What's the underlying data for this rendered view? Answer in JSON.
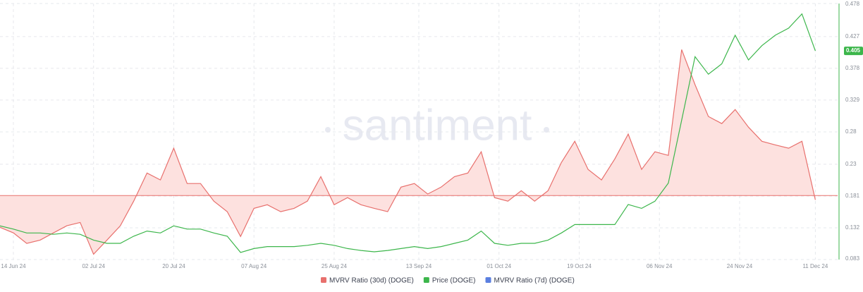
{
  "chart_data": {
    "type": "line",
    "watermark": "santiment",
    "x": [
      "2024-06-11",
      "2024-06-14",
      "2024-06-17",
      "2024-06-20",
      "2024-06-23",
      "2024-06-26",
      "2024-06-29",
      "2024-07-02",
      "2024-07-05",
      "2024-07-08",
      "2024-07-11",
      "2024-07-14",
      "2024-07-17",
      "2024-07-20",
      "2024-07-23",
      "2024-07-26",
      "2024-07-29",
      "2024-08-01",
      "2024-08-04",
      "2024-08-07",
      "2024-08-10",
      "2024-08-13",
      "2024-08-16",
      "2024-08-19",
      "2024-08-22",
      "2024-08-25",
      "2024-08-28",
      "2024-08-31",
      "2024-09-03",
      "2024-09-06",
      "2024-09-09",
      "2024-09-12",
      "2024-09-15",
      "2024-09-18",
      "2024-09-21",
      "2024-09-24",
      "2024-09-27",
      "2024-09-30",
      "2024-10-03",
      "2024-10-06",
      "2024-10-09",
      "2024-10-12",
      "2024-10-15",
      "2024-10-18",
      "2024-10-21",
      "2024-10-24",
      "2024-10-27",
      "2024-10-30",
      "2024-11-02",
      "2024-11-05",
      "2024-11-08",
      "2024-11-11",
      "2024-11-14",
      "2024-11-17",
      "2024-11-20",
      "2024-11-23",
      "2024-11-26",
      "2024-11-29",
      "2024-12-02",
      "2024-12-05",
      "2024-12-08",
      "2024-12-11"
    ],
    "xlim": [
      "2024-06-11",
      "2024-12-16"
    ],
    "xticks": [
      {
        "value": "2024-06-14",
        "label": "14 Jun 24"
      },
      {
        "value": "2024-07-02",
        "label": "02 Jul 24"
      },
      {
        "value": "2024-07-20",
        "label": "20 Jul 24"
      },
      {
        "value": "2024-08-07",
        "label": "07 Aug 24"
      },
      {
        "value": "2024-08-25",
        "label": "25 Aug 24"
      },
      {
        "value": "2024-09-13",
        "label": "13 Sep 24"
      },
      {
        "value": "2024-10-01",
        "label": "01 Oct 24"
      },
      {
        "value": "2024-10-19",
        "label": "19 Oct 24"
      },
      {
        "value": "2024-11-06",
        "label": "06 Nov 24"
      },
      {
        "value": "2024-11-24",
        "label": "24 Nov 24"
      },
      {
        "value": "2024-12-11",
        "label": "11 Dec 24"
      }
    ],
    "ylim": [
      -25,
      75
    ],
    "y2lim": [
      0.083,
      0.478
    ],
    "y2ticks": [
      0.083,
      0.132,
      0.181,
      0.23,
      0.28,
      0.329,
      0.378,
      0.427,
      0.478
    ],
    "grid": true,
    "series": [
      {
        "name": "MVRV Ratio (30d) (DOGE)",
        "color": "#e8706d",
        "fill": "#fde1df",
        "values": [
          -12.4,
          -14.6,
          -18.7,
          -17.4,
          -14.6,
          -11.8,
          -10.5,
          -22.9,
          -17.4,
          -11.8,
          -2.2,
          8.8,
          6.1,
          18.5,
          4.7,
          4.7,
          -2.2,
          -6.3,
          -16.0,
          -5.0,
          -3.6,
          -6.3,
          -5.0,
          -2.2,
          7.4,
          -3.6,
          -0.8,
          -3.6,
          -5.0,
          -6.3,
          3.3,
          4.7,
          0.6,
          3.3,
          7.4,
          8.8,
          17.1,
          -0.8,
          -2.2,
          1.9,
          -2.2,
          1.9,
          12.9,
          21.2,
          10.2,
          6.1,
          14.3,
          24.0,
          10.2,
          17.1,
          15.7,
          57.0,
          43.3,
          30.9,
          28.1,
          33.6,
          26.7,
          21.2,
          19.8,
          18.5,
          21.2,
          -1.7
        ]
      },
      {
        "name": "Price (DOGE)",
        "color": "#3cb64b",
        "axis": "y2",
        "values": [
          0.135,
          0.13,
          0.124,
          0.124,
          0.122,
          0.124,
          0.122,
          0.113,
          0.108,
          0.108,
          0.119,
          0.127,
          0.124,
          0.135,
          0.13,
          0.13,
          0.124,
          0.119,
          0.094,
          0.1,
          0.103,
          0.103,
          0.103,
          0.105,
          0.108,
          0.105,
          0.1,
          0.097,
          0.095,
          0.097,
          0.1,
          0.103,
          0.1,
          0.103,
          0.108,
          0.113,
          0.127,
          0.108,
          0.105,
          0.108,
          0.108,
          0.113,
          0.124,
          0.137,
          0.137,
          0.137,
          0.137,
          0.168,
          0.162,
          0.173,
          0.201,
          0.298,
          0.396,
          0.369,
          0.385,
          0.429,
          0.391,
          0.413,
          0.429,
          0.44,
          0.462,
          0.405
        ]
      },
      {
        "name": "MVRV Ratio (7d) (DOGE)",
        "color": "#5b7fe0"
      }
    ]
  }
}
